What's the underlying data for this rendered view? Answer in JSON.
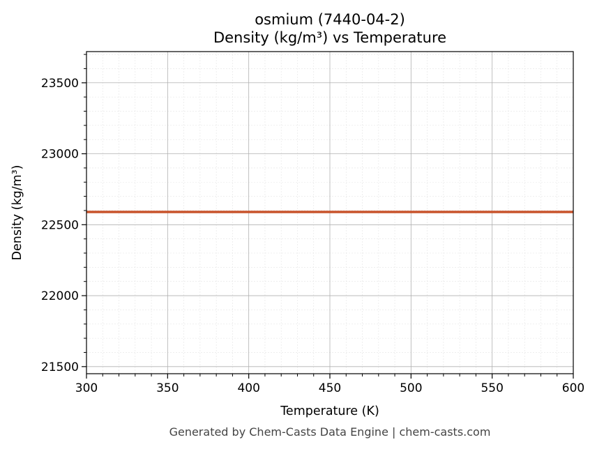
{
  "chart_data": {
    "type": "line",
    "title": "osmium (7440-04-2)",
    "subtitle": "Density (kg/m³) vs Temperature",
    "xlabel": "Temperature (K)",
    "ylabel": "Density (kg/m³)",
    "xlim": [
      300,
      600
    ],
    "ylim": [
      21450,
      23720
    ],
    "x_ticks": [
      "300",
      "350",
      "400",
      "450",
      "500",
      "550",
      "600"
    ],
    "y_ticks": [
      "21500",
      "22000",
      "22500",
      "23000",
      "23500"
    ],
    "grid": true,
    "minor_grid": true,
    "legend": "none",
    "series": [
      {
        "color": "#c8532b",
        "x": [
          300,
          600
        ],
        "y": [
          22590,
          22590
        ]
      }
    ]
  },
  "footer": "Generated by Chem-Casts Data Engine | chem-casts.com"
}
